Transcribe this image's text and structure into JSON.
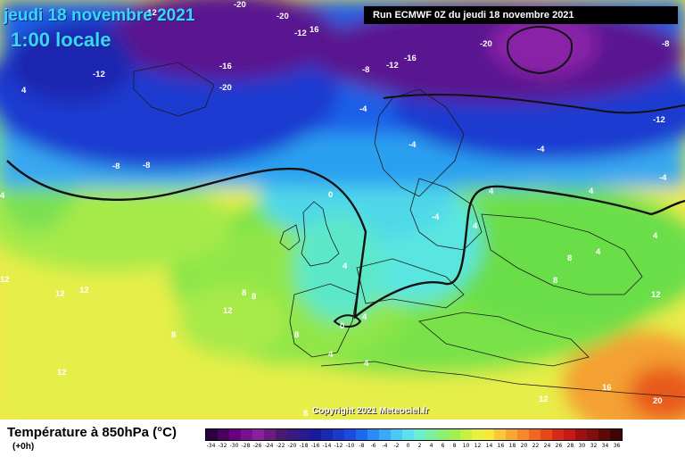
{
  "header": {
    "date_title": "jeudi 18 novembre 2021",
    "local_time": "1:00 locale",
    "run_info": "Run ECMWF 0Z du jeudi 18 novembre 2021"
  },
  "map": {
    "copyright": "Copyright 2021 Meteociel.fr",
    "labels": [
      {
        "text": "-12"
      },
      {
        "text": "-20"
      },
      {
        "text": "-20"
      },
      {
        "text": "-12"
      },
      {
        "text": "16"
      },
      {
        "text": "-12"
      },
      {
        "text": "-16"
      },
      {
        "text": "-20"
      },
      {
        "text": "-8"
      },
      {
        "text": "-12"
      },
      {
        "text": "-16"
      },
      {
        "text": "-20"
      },
      {
        "text": "-8"
      },
      {
        "text": "-12"
      },
      {
        "text": "4"
      },
      {
        "text": "-4"
      },
      {
        "text": "-8"
      },
      {
        "text": "-4"
      },
      {
        "text": "0"
      },
      {
        "text": "4"
      },
      {
        "text": "4"
      },
      {
        "text": "-4"
      },
      {
        "text": "4"
      },
      {
        "text": "4"
      },
      {
        "text": "4"
      },
      {
        "text": "12"
      },
      {
        "text": "12"
      },
      {
        "text": "12"
      },
      {
        "text": "8"
      },
      {
        "text": "12"
      },
      {
        "text": "8"
      },
      {
        "text": "8"
      },
      {
        "text": "4"
      },
      {
        "text": "4"
      },
      {
        "text": "8"
      },
      {
        "text": "8"
      },
      {
        "text": "0"
      },
      {
        "text": "8"
      },
      {
        "text": "4"
      },
      {
        "text": "4"
      },
      {
        "text": "12"
      },
      {
        "text": "12"
      },
      {
        "text": "16"
      },
      {
        "text": "20"
      },
      {
        "text": "12"
      },
      {
        "text": "8"
      },
      {
        "text": "4"
      },
      {
        "text": "-4"
      },
      {
        "text": "-8"
      },
      {
        "text": "-4"
      }
    ]
  },
  "legend": {
    "title": "Température à 850hPa (°C)",
    "subtitle": "(+0h)",
    "scale_labels": [
      "-34",
      "-32",
      "-30",
      "-28",
      "-26",
      "-24",
      "-22",
      "-20",
      "-18",
      "-16",
      "-14",
      "-12",
      "-10",
      "-8",
      "-6",
      "-4",
      "-2",
      "0",
      "2",
      "4",
      "6",
      "8",
      "10",
      "12",
      "14",
      "16",
      "18",
      "20",
      "22",
      "24",
      "26",
      "28",
      "30",
      "32",
      "34",
      "36"
    ],
    "scale_colors": [
      "#2a0040",
      "#4a0060",
      "#6a0080",
      "#7a1090",
      "#8a20a0",
      "#6a1a80",
      "#4a1a70",
      "#3a1a80",
      "#2a1a90",
      "#1a1aa0",
      "#1a2ab0",
      "#1a3ac8",
      "#1a4ae0",
      "#1a6af0",
      "#2a8af8",
      "#3aaaf8",
      "#4ac8f8",
      "#5ae0f0",
      "#6af0d0",
      "#7af0a0",
      "#8af070",
      "#a0f050",
      "#c8f040",
      "#e8f040",
      "#f8e838",
      "#f8c838",
      "#f8a830",
      "#f88828",
      "#f06820",
      "#e84818",
      "#d82818",
      "#c81818",
      "#a01010",
      "#801010",
      "#600808",
      "#400404"
    ]
  }
}
